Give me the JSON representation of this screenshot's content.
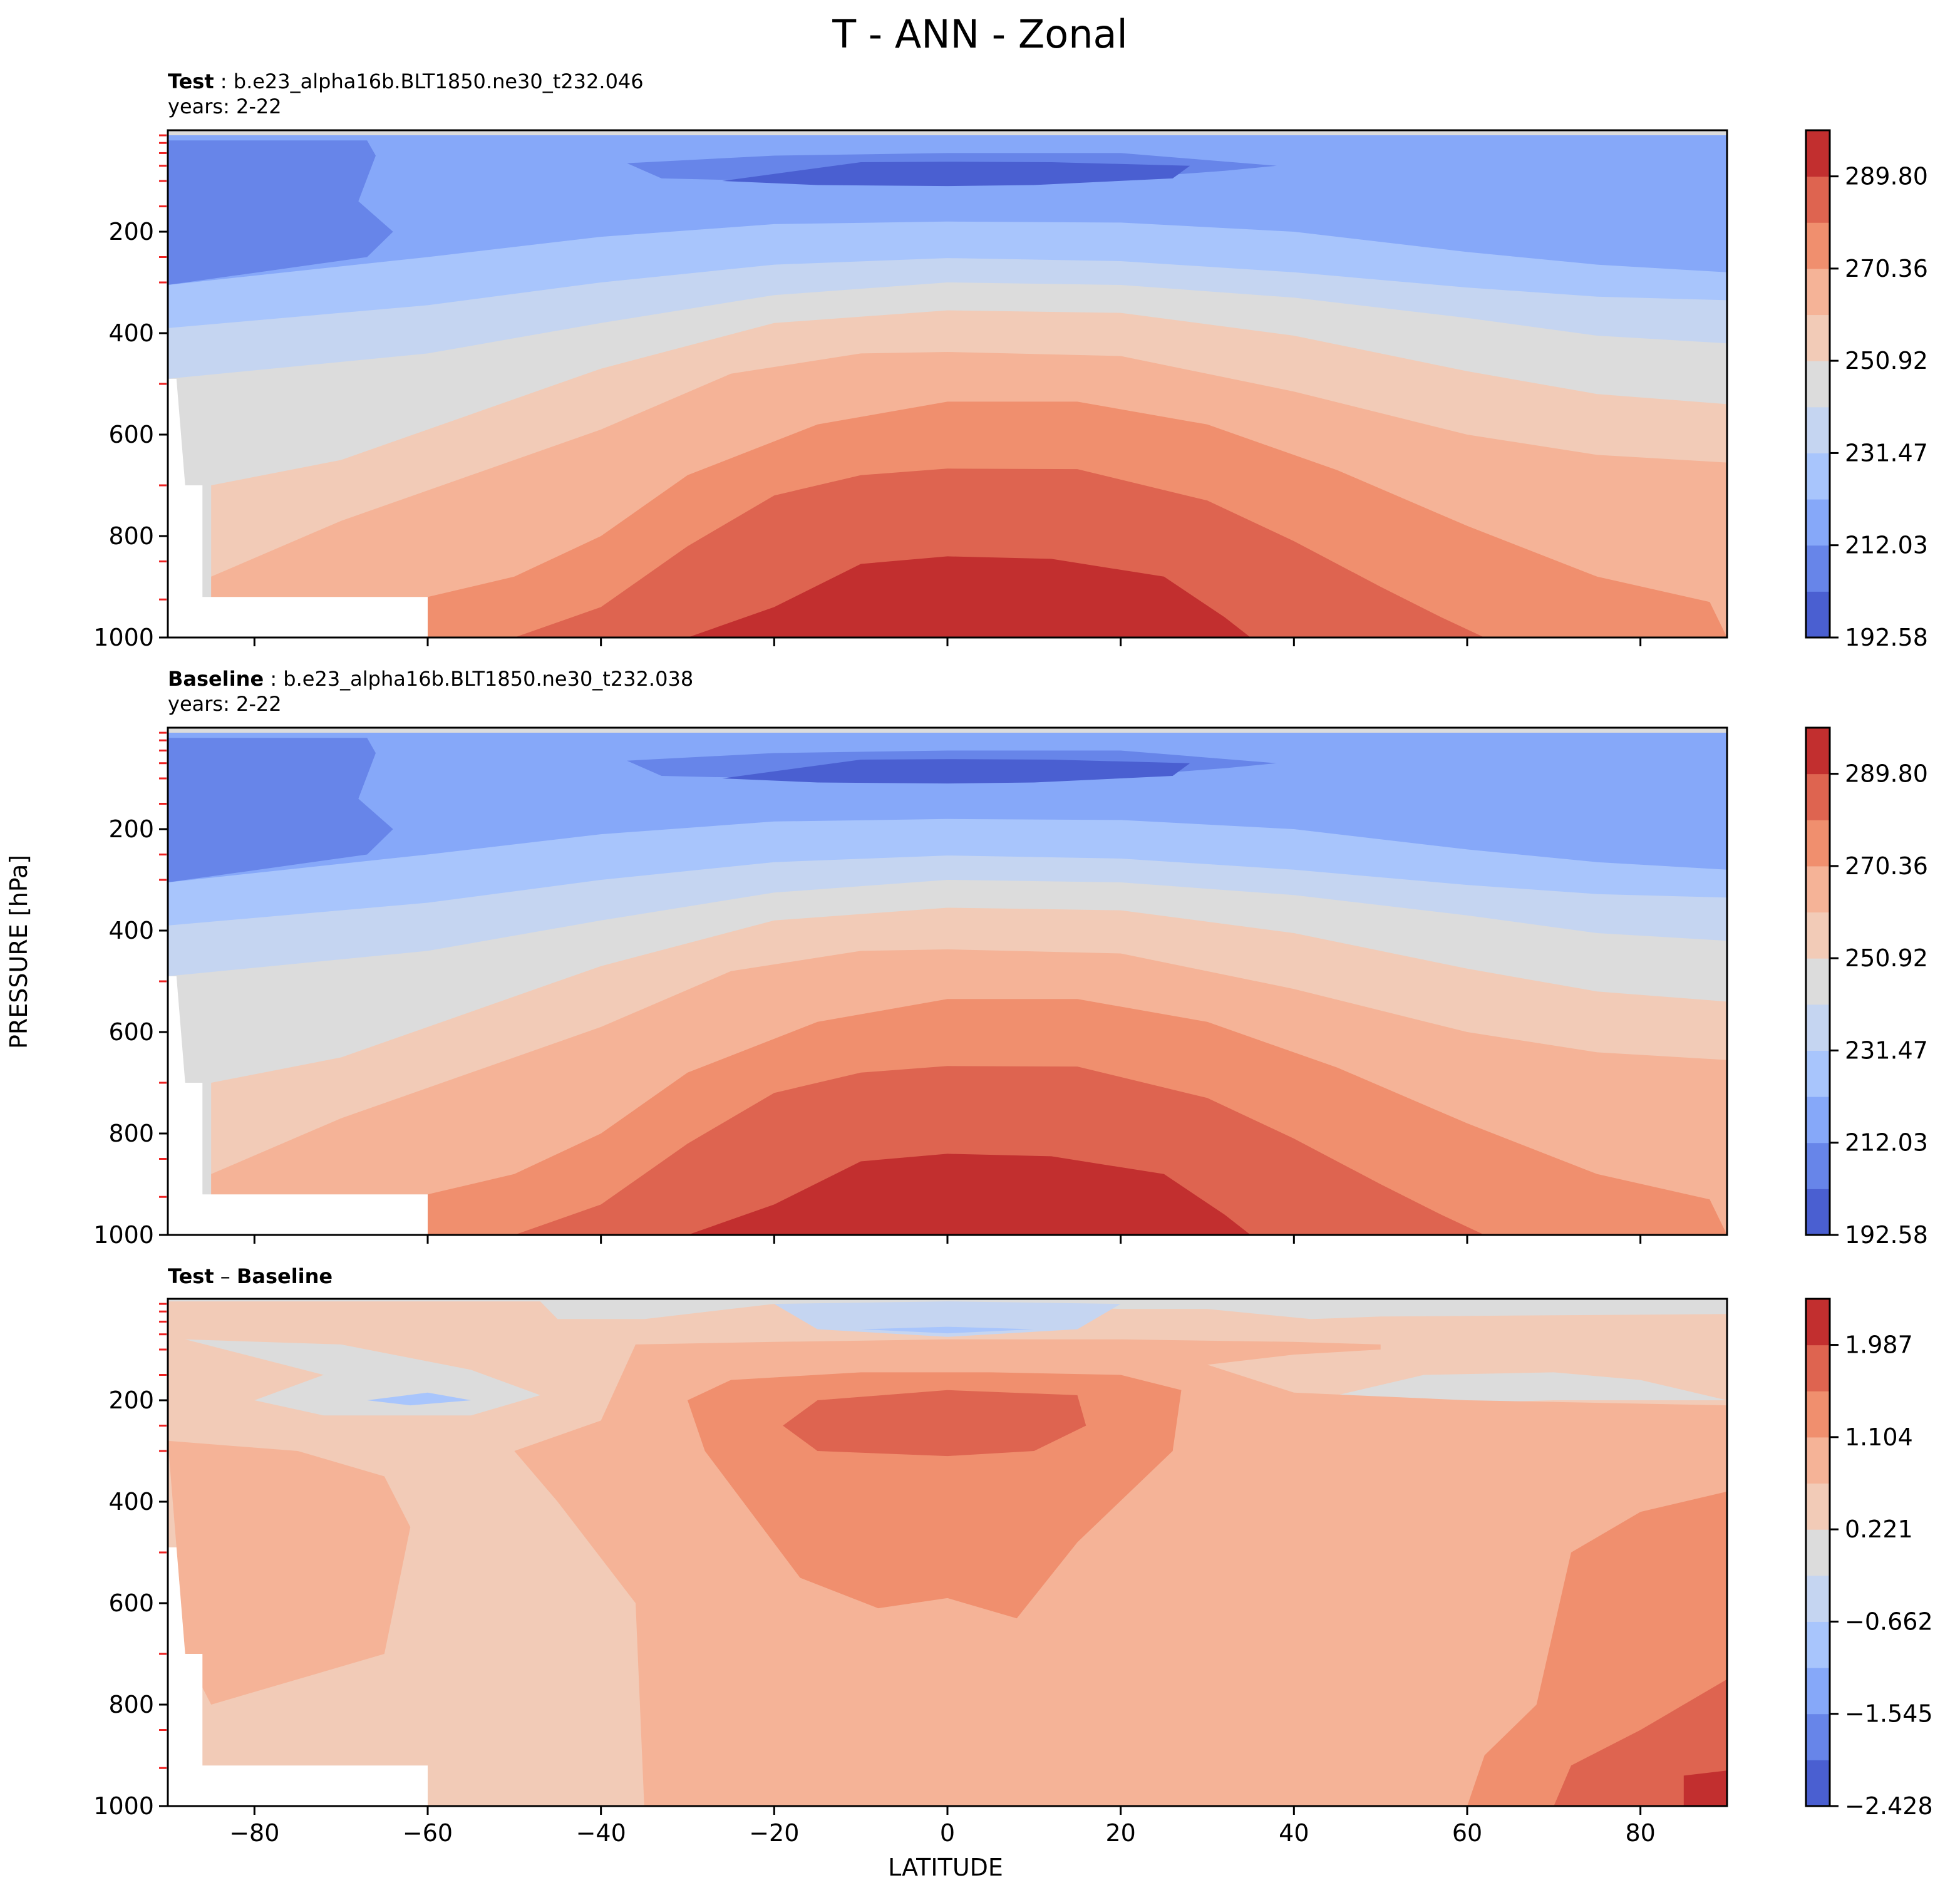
{
  "suptitle": "T - ANN - Zonal",
  "x_axis_label": "LATITUDE",
  "y_axis_label": "PRESSURE [hPa]",
  "colors": {
    "coolwarm": [
      "#4a5fd1",
      "#6785e9",
      "#86a8f9",
      "#a8c5fc",
      "#c5d5f1",
      "#dcdcdc",
      "#f2cbb7",
      "#f5b397",
      "#f08f6e",
      "#de6450",
      "#c22f2f"
    ]
  },
  "chart_data": [
    {
      "type": "contour",
      "title_bold": "Test",
      "title_rest": " : b.e23_alpha16b.BLT1850.ne30_t232.046",
      "subtitle": "years: 2-22",
      "xlim": [
        -90,
        90
      ],
      "ylim": [
        1000,
        0
      ],
      "xticks": [
        "−80",
        "−60",
        "−40",
        "−20",
        "0",
        "20",
        "40",
        "60",
        "80"
      ],
      "xtick_values": [
        -80,
        -60,
        -40,
        -20,
        0,
        20,
        40,
        60,
        80
      ],
      "yticks": [
        "200",
        "400",
        "600",
        "800",
        "1000"
      ],
      "ytick_values": [
        200,
        400,
        600,
        800,
        1000
      ],
      "show_xticklabels": false,
      "colorbar_ticks": [
        "289.80",
        "270.36",
        "250.92",
        "231.47",
        "212.03",
        "192.58"
      ],
      "colorbar_tick_values": [
        289.8,
        270.36,
        250.92,
        231.47,
        212.03,
        192.58
      ],
      "colorbar_range": [
        192.58,
        299.52
      ],
      "field": "temperature"
    },
    {
      "type": "contour",
      "title_bold": "Baseline",
      "title_rest": " : b.e23_alpha16b.BLT1850.ne30_t232.038",
      "subtitle": "years: 2-22",
      "xlim": [
        -90,
        90
      ],
      "ylim": [
        1000,
        0
      ],
      "xticks": [
        "−80",
        "−60",
        "−40",
        "−20",
        "0",
        "20",
        "40",
        "60",
        "80"
      ],
      "xtick_values": [
        -80,
        -60,
        -40,
        -20,
        0,
        20,
        40,
        60,
        80
      ],
      "yticks": [
        "200",
        "400",
        "600",
        "800",
        "1000"
      ],
      "ytick_values": [
        200,
        400,
        600,
        800,
        1000
      ],
      "show_xticklabels": false,
      "colorbar_ticks": [
        "289.80",
        "270.36",
        "250.92",
        "231.47",
        "212.03",
        "192.58"
      ],
      "colorbar_tick_values": [
        289.8,
        270.36,
        250.92,
        231.47,
        212.03,
        192.58
      ],
      "colorbar_range": [
        192.58,
        299.52
      ],
      "field": "temperature"
    },
    {
      "type": "contour",
      "title_bold": "Test",
      "title_sep": " – ",
      "title_bold2": "Baseline",
      "subtitle": "",
      "xlim": [
        -90,
        90
      ],
      "ylim": [
        1000,
        0
      ],
      "xticks": [
        "−80",
        "−60",
        "−40",
        "−20",
        "0",
        "20",
        "40",
        "60",
        "80"
      ],
      "xtick_values": [
        -80,
        -60,
        -40,
        -20,
        0,
        20,
        40,
        60,
        80
      ],
      "yticks": [
        "200",
        "400",
        "600",
        "800",
        "1000"
      ],
      "ytick_values": [
        200,
        400,
        600,
        800,
        1000
      ],
      "show_xticklabels": true,
      "colorbar_ticks": [
        "1.987",
        "1.104",
        "0.221",
        "−0.662",
        "−1.545",
        "−2.428"
      ],
      "colorbar_tick_values": [
        1.987,
        1.104,
        0.221,
        -0.662,
        -1.545,
        -2.428
      ],
      "colorbar_range": [
        -2.428,
        2.428
      ],
      "field": "difference"
    }
  ]
}
